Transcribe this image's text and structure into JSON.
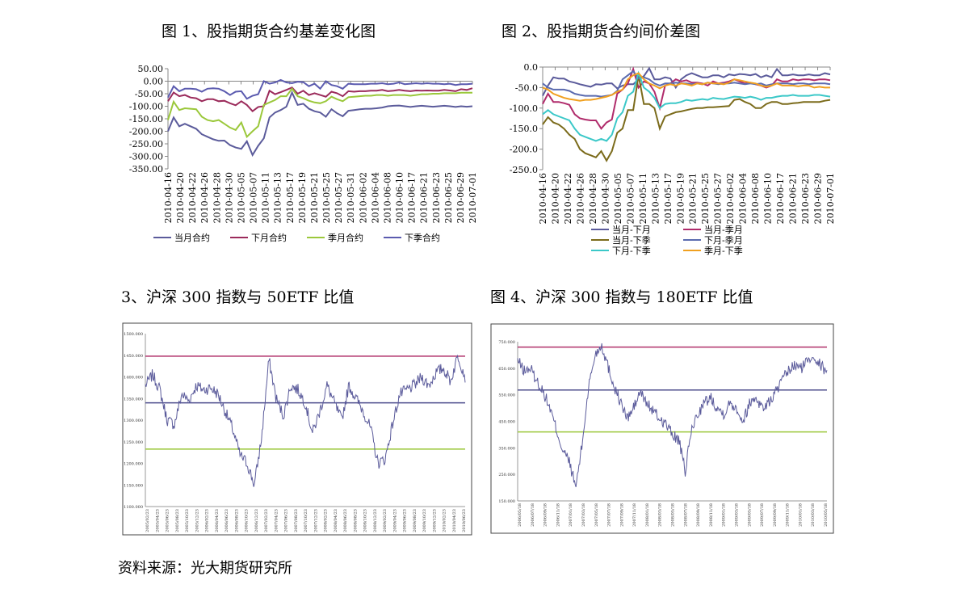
{
  "source": "资料来源：光大期货研究所",
  "chart_data": [
    {
      "id": "c1",
      "type": "line",
      "title": "图 1、股指期货合约基差变化图",
      "ylim": [
        -350,
        50
      ],
      "yticks": [
        "50.00",
        "0.00",
        "-50.00",
        "-100.00",
        "-150.00",
        "-200.00",
        "-250.00",
        "-300.00",
        "-350.00"
      ],
      "ytick_values": [
        50,
        0,
        -50,
        -100,
        -150,
        -200,
        -250,
        -300,
        -350
      ],
      "xticks": [
        "2010-04-16",
        "2010-04-20",
        "2010-04-22",
        "2010-04-26",
        "2010-04-28",
        "2010-04-30",
        "2010-05-05",
        "2010-05-07",
        "2010-05-11",
        "2010-05-13",
        "2010-05-17",
        "2010-05-19",
        "2010-05-21",
        "2010-05-25",
        "2010-05-27",
        "2010-05-31",
        "2010-06-02",
        "2010-06-04",
        "2010-06-08",
        "2010-06-10",
        "2010-06-17",
        "2010-06-21",
        "2010-06-23",
        "2010-06-25",
        "2010-06-29",
        "2010-07-01"
      ],
      "n": 55,
      "series": [
        {
          "name": "当月合约",
          "color": "#5B5B9B",
          "values": [
            -200,
            -145,
            -180,
            -170,
            -180,
            -190,
            -212,
            -222,
            -232,
            -238,
            -237,
            -255,
            -265,
            -270,
            -240,
            -295,
            -258,
            -228,
            -145,
            -125,
            -115,
            -102,
            -45,
            -95,
            -90,
            -110,
            -120,
            -125,
            -142,
            -112,
            -128,
            -140,
            -118,
            -115,
            -112,
            -110,
            -110,
            -108,
            -105,
            -100,
            -98,
            -97,
            -100,
            -103,
            -100,
            -98,
            -100,
            -102,
            -100,
            -98,
            -100,
            -103,
            -100,
            -102,
            -100
          ]
        },
        {
          "name": "下月合约",
          "color": "#9B2B5B",
          "values": [
            -80,
            -45,
            -60,
            -55,
            -65,
            -68,
            -80,
            -72,
            -72,
            -80,
            -78,
            -88,
            -96,
            -80,
            -95,
            -120,
            -103,
            -100,
            -38,
            -52,
            -44,
            -35,
            -25,
            -50,
            -38,
            -55,
            -48,
            -55,
            -62,
            -42,
            -48,
            -60,
            -40,
            -42,
            -40,
            -40,
            -38,
            -38,
            -35,
            -40,
            -38,
            -35,
            -38,
            -40,
            -37,
            -38,
            -37,
            -38,
            -38,
            -35,
            -37,
            -40,
            -32,
            -35,
            -28
          ]
        },
        {
          "name": "季月合约",
          "color": "#9BC83B",
          "values": [
            -155,
            -82,
            -115,
            -108,
            -110,
            -112,
            -142,
            -155,
            -160,
            -155,
            -170,
            -185,
            -195,
            -165,
            -222,
            -200,
            -180,
            -95,
            -85,
            -75,
            -60,
            -60,
            -30,
            -60,
            -68,
            -78,
            -85,
            -88,
            -80,
            -62,
            -72,
            -80,
            -64,
            -62,
            -60,
            -58,
            -58,
            -55,
            -55,
            -58,
            -55,
            -55,
            -55,
            -58,
            -55,
            -52,
            -52,
            -50,
            -50,
            -48,
            -48,
            -48,
            -46,
            -46,
            -46
          ]
        },
        {
          "name": "下季合约",
          "color": "#5B5BAF",
          "values": [
            -65,
            -20,
            -40,
            -30,
            -30,
            -32,
            -42,
            -30,
            -28,
            -30,
            -40,
            -55,
            -42,
            -40,
            -70,
            -58,
            -52,
            0,
            -10,
            -5,
            5,
            -5,
            -8,
            -2,
            -4,
            -20,
            -10,
            -30,
            0,
            -15,
            -20,
            -30,
            -10,
            -12,
            -12,
            -12,
            -10,
            -10,
            -8,
            -12,
            -10,
            -5,
            -12,
            -10,
            -8,
            -10,
            -8,
            -10,
            -10,
            -12,
            -10,
            -15,
            -12,
            -12,
            -10
          ]
        }
      ]
    },
    {
      "id": "c2",
      "type": "line",
      "title": "图 2、股指期货合约间价差图",
      "ylim": [
        -250,
        0
      ],
      "yticks": [
        "0.0",
        "-50.0",
        "-100.0",
        "-150.0",
        "-200.0",
        "-250.0"
      ],
      "ytick_values": [
        0,
        -50,
        -100,
        -150,
        -200,
        -250
      ],
      "xticks": [
        "2010-04-16",
        "2010-04-20",
        "2010-04-22",
        "2010-04-26",
        "2010-04-28",
        "2010-04-30",
        "2010-05-05",
        "2010-05-07",
        "2010-05-11",
        "2010-05-13",
        "2010-05-17",
        "2010-05-19",
        "2010-05-21",
        "2010-05-25",
        "2010-05-27",
        "2010-06-02",
        "2010-06-04",
        "2010-06-08",
        "2010-06-10",
        "2010-06-17",
        "2010-06-21",
        "2010-06-23",
        "2010-06-29",
        "2010-07-01"
      ],
      "n": 55,
      "series": [
        {
          "name": "当月-下月",
          "color": "#5B5B9B",
          "values": [
            -70,
            -45,
            -25,
            -28,
            -28,
            -35,
            -38,
            -42,
            -45,
            -48,
            -42,
            -43,
            -40,
            -40,
            -52,
            -45,
            -42,
            -42,
            -30,
            -22,
            -3,
            -30,
            -30,
            -25,
            -28,
            -50,
            -30,
            -20,
            -15,
            -20,
            -25,
            -25,
            -20,
            -20,
            -25,
            -18,
            -20,
            -17,
            -18,
            -20,
            -17,
            -25,
            -20,
            -25,
            -5,
            -20,
            -20,
            -18,
            -20,
            -20,
            -18,
            -20,
            -20,
            -15,
            -18
          ]
        },
        {
          "name": "当月-季月",
          "color": "#B02B6B",
          "values": [
            -90,
            -65,
            -85,
            -85,
            -88,
            -92,
            -115,
            -125,
            -128,
            -130,
            -130,
            -150,
            -135,
            -128,
            -65,
            -55,
            -40,
            -5,
            -50,
            -35,
            -40,
            -60,
            -100,
            -45,
            -40,
            -30,
            -35,
            -32,
            -38,
            -38,
            -40,
            -45,
            -35,
            -40,
            -38,
            -35,
            -30,
            -35,
            -40,
            -38,
            -42,
            -45,
            -50,
            -45,
            -30,
            -35,
            -35,
            -30,
            -32,
            -30,
            -30,
            -32,
            -30,
            -30,
            -32
          ]
        },
        {
          "name": "当月-下季",
          "color": "#7B6B1B",
          "values": [
            -140,
            -122,
            -135,
            -140,
            -150,
            -165,
            -175,
            -200,
            -210,
            -215,
            -220,
            -205,
            -228,
            -205,
            -160,
            -150,
            -105,
            -105,
            -20,
            -90,
            -90,
            -100,
            -150,
            -120,
            -115,
            -110,
            -108,
            -105,
            -102,
            -100,
            -100,
            -98,
            -98,
            -97,
            -96,
            -95,
            -80,
            -78,
            -85,
            -90,
            -100,
            -100,
            -90,
            -85,
            -85,
            -90,
            -90,
            -88,
            -87,
            -85,
            -85,
            -85,
            -85,
            -82,
            -80
          ]
        },
        {
          "name": "下月-季月",
          "color": "#5B6BAF",
          "values": [
            -40,
            -50,
            -55,
            -55,
            -55,
            -58,
            -65,
            -68,
            -70,
            -70,
            -70,
            -72,
            -70,
            -68,
            -58,
            -30,
            -20,
            -10,
            -28,
            -25,
            -30,
            -40,
            -45,
            -40,
            -40,
            -38,
            -40,
            -40,
            -42,
            -40,
            -42,
            -38,
            -40,
            -42,
            -40,
            -40,
            -38,
            -40,
            -42,
            -40,
            -42,
            -40,
            -45,
            -42,
            -40,
            -40,
            -40,
            -42,
            -40,
            -40,
            -42,
            -40,
            -40,
            -40,
            -42
          ]
        },
        {
          "name": "下月-下季",
          "color": "#3BC8C8",
          "values": [
            -115,
            -105,
            -115,
            -120,
            -125,
            -130,
            -150,
            -165,
            -170,
            -175,
            -180,
            -175,
            -180,
            -165,
            -125,
            -110,
            -70,
            -60,
            -15,
            -50,
            -60,
            -75,
            -100,
            -90,
            -88,
            -88,
            -85,
            -80,
            -82,
            -80,
            -78,
            -80,
            -75,
            -77,
            -78,
            -75,
            -72,
            -73,
            -75,
            -72,
            -75,
            -80,
            -75,
            -75,
            -72,
            -70,
            -70,
            -68,
            -70,
            -70,
            -70,
            -68,
            -68,
            -70,
            -72
          ]
        },
        {
          "name": "季月-下季",
          "color": "#F0A020",
          "values": [
            -50,
            -55,
            -65,
            -70,
            -75,
            -78,
            -80,
            -82,
            -80,
            -80,
            -78,
            -75,
            -72,
            -68,
            -60,
            -55,
            -30,
            -20,
            -15,
            -30,
            -40,
            -45,
            -52,
            -45,
            -42,
            -45,
            -40,
            -42,
            -45,
            -40,
            -42,
            -38,
            -40,
            -40,
            -42,
            -38,
            -30,
            -32,
            -35,
            -38,
            -40,
            -45,
            -48,
            -45,
            -40,
            -45,
            -45,
            -45,
            -47,
            -45,
            -45,
            -50,
            -48,
            -50,
            -50
          ]
        }
      ]
    },
    {
      "id": "c3",
      "type": "line",
      "title": "3、沪深 300 指数与 50ETF 比值",
      "ylim": [
        1100,
        1500
      ],
      "yticks": [
        "1500.000",
        "1450.000",
        "1400.000",
        "1350.000",
        "1300.000",
        "1250.000",
        "1200.000",
        "1150.000",
        "1100.000"
      ],
      "ytick_values": [
        1500,
        1450,
        1400,
        1350,
        1300,
        1250,
        1200,
        1150,
        1100
      ],
      "xticks": [
        "2005/02/23",
        "2005/04/23",
        "2005/06/23",
        "2005/08/23",
        "2005/10/23",
        "2005/12/23",
        "2006/02/23",
        "2006/04/23",
        "2006/06/23",
        "2006/08/23",
        "2006/10/23",
        "2006/12/23",
        "2007/02/23",
        "2007/04/23",
        "2007/06/23",
        "2007/08/23",
        "2007/10/23",
        "2007/12/23",
        "2008/02/23",
        "2008/04/23",
        "2008/06/23",
        "2008/08/23",
        "2008/10/23",
        "2008/12/23",
        "2009/02/23",
        "2009/04/23",
        "2009/06/23",
        "2009/08/23",
        "2009/10/23",
        "2009/12/23",
        "2010/02/23",
        "2010/04/23",
        "2010/06/23"
      ],
      "hlines": [
        {
          "name": "upper",
          "value": 1448,
          "color": "#B0306A"
        },
        {
          "name": "mean",
          "value": 1340,
          "color": "#4B4B8B"
        },
        {
          "name": "lower",
          "value": 1233,
          "color": "#9BC83B"
        }
      ],
      "series": [
        {
          "name": "ratio",
          "color": "#5B5B9B",
          "anchors": [
            1380,
            1405,
            1370,
            1300,
            1290,
            1360,
            1345,
            1380,
            1370,
            1375,
            1360,
            1320,
            1280,
            1220,
            1200,
            1150,
            1260,
            1440,
            1350,
            1310,
            1380,
            1370,
            1340,
            1270,
            1320,
            1380,
            1340,
            1300,
            1380,
            1350,
            1320,
            1280,
            1200,
            1210,
            1290,
            1360,
            1370,
            1380,
            1400,
            1380,
            1410,
            1420,
            1390,
            1450,
            1400
          ]
        }
      ]
    },
    {
      "id": "c4",
      "type": "line",
      "title": "图 4、沪深 300 指数与 180ETF 比值",
      "ylim": [
        150,
        750
      ],
      "yticks": [
        "750.000",
        "650.000",
        "550.000",
        "450.000",
        "350.000",
        "250.000",
        "150.000"
      ],
      "ytick_values": [
        750,
        650,
        550,
        450,
        350,
        250,
        150
      ],
      "xticks": [
        "2006/05/18",
        "2006/07/18",
        "2006/09/18",
        "2006/11/18",
        "2007/01/18",
        "2007/03/18",
        "2007/05/18",
        "2007/07/18",
        "2007/09/18",
        "2007/11/18",
        "2008/01/18",
        "2008/03/18",
        "2008/05/18",
        "2008/07/18",
        "2008/09/18",
        "2008/11/18",
        "2009/01/18",
        "2009/03/18",
        "2009/05/18",
        "2009/07/18",
        "2009/09/18",
        "2009/11/18",
        "2010/01/18",
        "2010/03/18",
        "2010/05/18"
      ],
      "hlines": [
        {
          "name": "upper",
          "value": 730,
          "color": "#B0306A"
        },
        {
          "name": "mean",
          "value": 568,
          "color": "#4B4B8B"
        },
        {
          "name": "lower",
          "value": 410,
          "color": "#9BC83B"
        }
      ],
      "series": [
        {
          "name": "ratio",
          "color": "#5B5B9B",
          "anchors": [
            680,
            640,
            650,
            600,
            560,
            500,
            420,
            340,
            300,
            200,
            360,
            580,
            700,
            740,
            660,
            580,
            520,
            460,
            500,
            560,
            520,
            490,
            460,
            440,
            400,
            380,
            260,
            420,
            480,
            520,
            540,
            500,
            480,
            520,
            500,
            450,
            520,
            540,
            500,
            520,
            560,
            600,
            640,
            660,
            650,
            680,
            700,
            660,
            640
          ]
        }
      ]
    }
  ]
}
